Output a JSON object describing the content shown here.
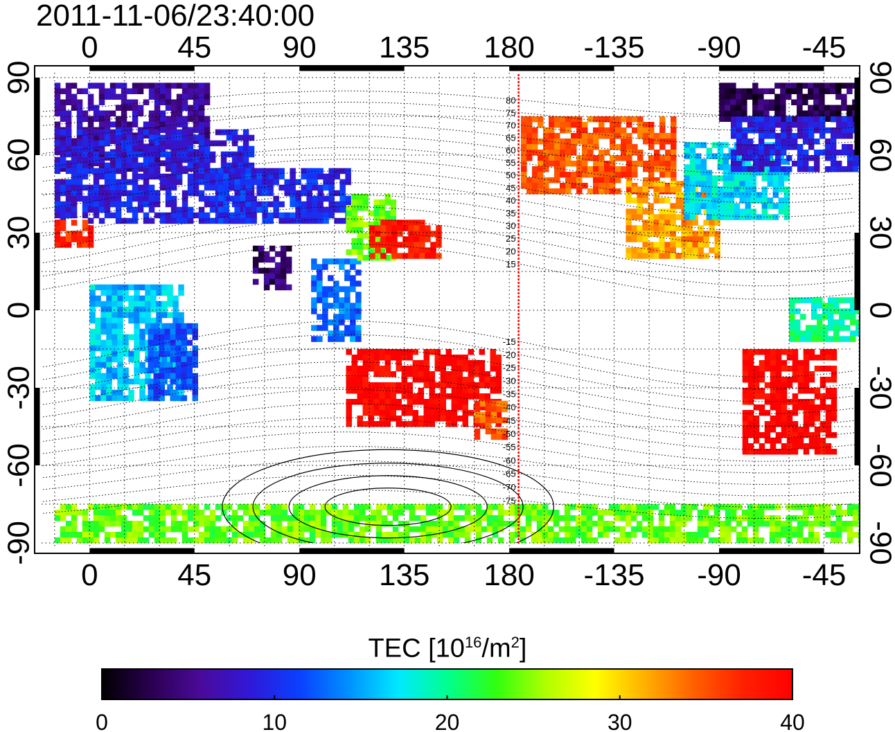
{
  "timestamp": "2011-11-06/23:40:00",
  "colorbar": {
    "title_prefix": "TEC  [10",
    "title_exp": "16",
    "title_mid": "/m",
    "title_exp2": "2",
    "title_suffix": "]",
    "ticks": [
      "0",
      "10",
      "20",
      "30",
      "40"
    ],
    "range": [
      0,
      40
    ],
    "colors": [
      "#000000",
      "#2a0050",
      "#4a0a9a",
      "#3018d8",
      "#0a40ff",
      "#0090ff",
      "#00e8ff",
      "#00ff90",
      "#30ff10",
      "#b0ff00",
      "#ffff00",
      "#ffb000",
      "#ff6000",
      "#ff2000",
      "#ff0000"
    ]
  },
  "chart_data": {
    "type": "heatmap",
    "title": "2011-11-06/23:40:00",
    "x_tick_labels": [
      "0",
      "45",
      "90",
      "135",
      "180",
      "-135",
      "-90",
      "-45"
    ],
    "y_tick_labels": [
      "90",
      "60",
      "30",
      "0",
      "-30",
      "-60",
      "-90"
    ],
    "y_ticks": [
      90,
      60,
      30,
      0,
      -30,
      -60,
      -90
    ],
    "xlim": [
      -20,
      330
    ],
    "ylim": [
      -90,
      90
    ],
    "grid": true,
    "meridian_longitude": 184,
    "meridian_labels": [
      "80",
      "75",
      "70",
      "65",
      "60",
      "55",
      "50",
      "45",
      "40",
      "35",
      "30",
      "25",
      "20",
      "15",
      "-15",
      "-20",
      "-25",
      "-30",
      "-35",
      "-40",
      "-45",
      "-50",
      "-55",
      "-60",
      "-65",
      "-70",
      "-75"
    ],
    "tec_regions": [
      {
        "lon": [
          -15,
          50
        ],
        "lat": [
          55,
          88
        ],
        "tec": 6
      },
      {
        "lon": [
          -15,
          70
        ],
        "lat": [
          35,
          70
        ],
        "tec": 9
      },
      {
        "lon": [
          55,
          110
        ],
        "lat": [
          35,
          55
        ],
        "tec": 10
      },
      {
        "lon": [
          -15,
          0
        ],
        "lat": [
          25,
          35
        ],
        "tec": 37
      },
      {
        "lon": [
          0,
          40
        ],
        "lat": [
          -35,
          10
        ],
        "tec": 16
      },
      {
        "lon": [
          25,
          45
        ],
        "lat": [
          -35,
          -5
        ],
        "tec": 12
      },
      {
        "lon": [
          70,
          85
        ],
        "lat": [
          8,
          25
        ],
        "tec": 4
      },
      {
        "lon": [
          95,
          115
        ],
        "lat": [
          -10,
          20
        ],
        "tec": 13
      },
      {
        "lon": [
          110,
          130
        ],
        "lat": [
          20,
          45
        ],
        "tec": 24
      },
      {
        "lon": [
          120,
          150
        ],
        "lat": [
          20,
          35
        ],
        "tec": 38
      },
      {
        "lon": [
          110,
          175
        ],
        "lat": [
          -45,
          -15
        ],
        "tec": 40
      },
      {
        "lon": [
          165,
          178
        ],
        "lat": [
          -50,
          -35
        ],
        "tec": 35
      },
      {
        "lon": [
          185,
          250
        ],
        "lat": [
          45,
          75
        ],
        "tec": 35
      },
      {
        "lon": [
          230,
          270
        ],
        "lat": [
          20,
          50
        ],
        "tec": 32
      },
      {
        "lon": [
          255,
          300
        ],
        "lat": [
          35,
          65
        ],
        "tec": 17
      },
      {
        "lon": [
          270,
          330
        ],
        "lat": [
          75,
          88
        ],
        "tec": 3
      },
      {
        "lon": [
          275,
          330
        ],
        "lat": [
          55,
          75
        ],
        "tec": 9
      },
      {
        "lon": [
          280,
          320
        ],
        "lat": [
          -55,
          -15
        ],
        "tec": 40
      },
      {
        "lon": [
          300,
          330
        ],
        "lat": [
          -10,
          5
        ],
        "tec": 20
      },
      {
        "lon": [
          -15,
          330
        ],
        "lat": [
          -88,
          -75
        ],
        "tec": 24
      }
    ]
  }
}
